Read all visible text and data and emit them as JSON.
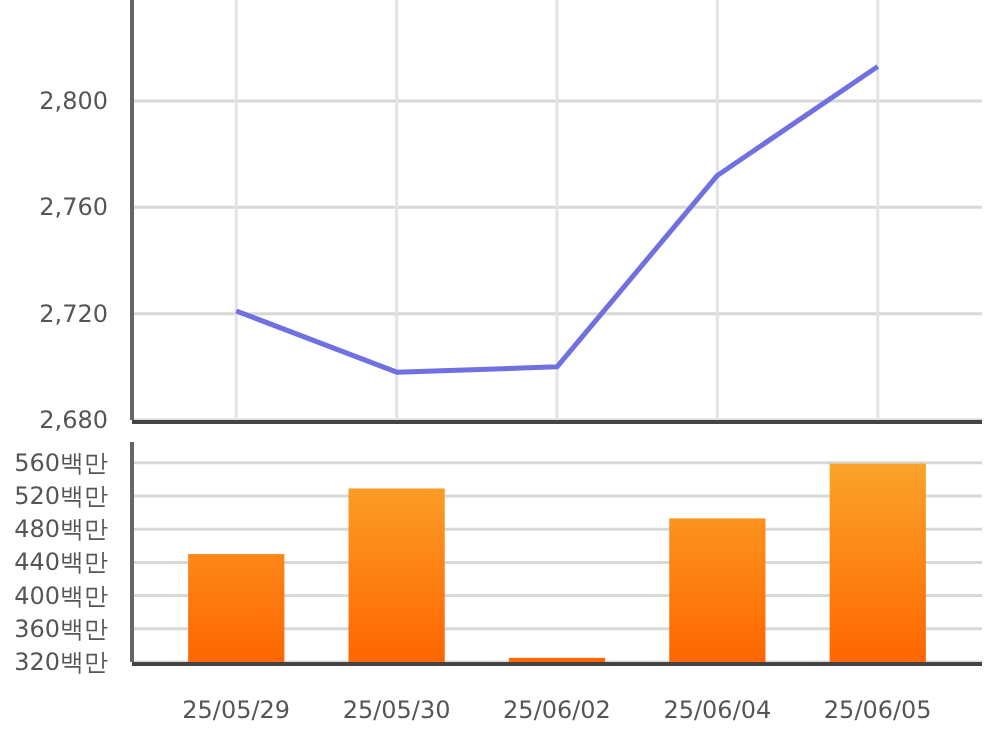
{
  "chart_data": [
    {
      "type": "line",
      "categories": [
        null,
        null,
        null,
        null,
        null
      ],
      "series": [
        {
          "color": "#7070e0",
          "values": [
            2721,
            2698,
            2700,
            2772,
            2813
          ]
        }
      ],
      "ylim": [
        2680,
        2838
      ],
      "yticks": [
        {
          "value": 2680,
          "label": "2,680"
        },
        {
          "value": 2720,
          "label": "2,720"
        },
        {
          "value": 2760,
          "label": "2,760"
        },
        {
          "value": 2800,
          "label": "2,800"
        }
      ],
      "grid": true,
      "tick_labels": "y",
      "marker": "none",
      "line_style": "solid"
    },
    {
      "type": "bar",
      "categories": [
        "25/05/29",
        "25/05/30",
        "25/06/02",
        "25/06/04",
        "25/06/05"
      ],
      "series": [
        {
          "color": "#ff6600",
          "values": [
            450,
            529,
            325,
            493,
            559
          ]
        }
      ],
      "ylim": [
        320,
        585
      ],
      "yticks": [
        {
          "value": 320,
          "label": "320백만"
        },
        {
          "value": 360,
          "label": "360백만"
        },
        {
          "value": 400,
          "label": "400백만"
        },
        {
          "value": 440,
          "label": "440백만"
        },
        {
          "value": 480,
          "label": "480백만"
        },
        {
          "value": 520,
          "label": "520백만"
        },
        {
          "value": 560,
          "label": "560백만"
        }
      ],
      "grid": "y"
    }
  ]
}
